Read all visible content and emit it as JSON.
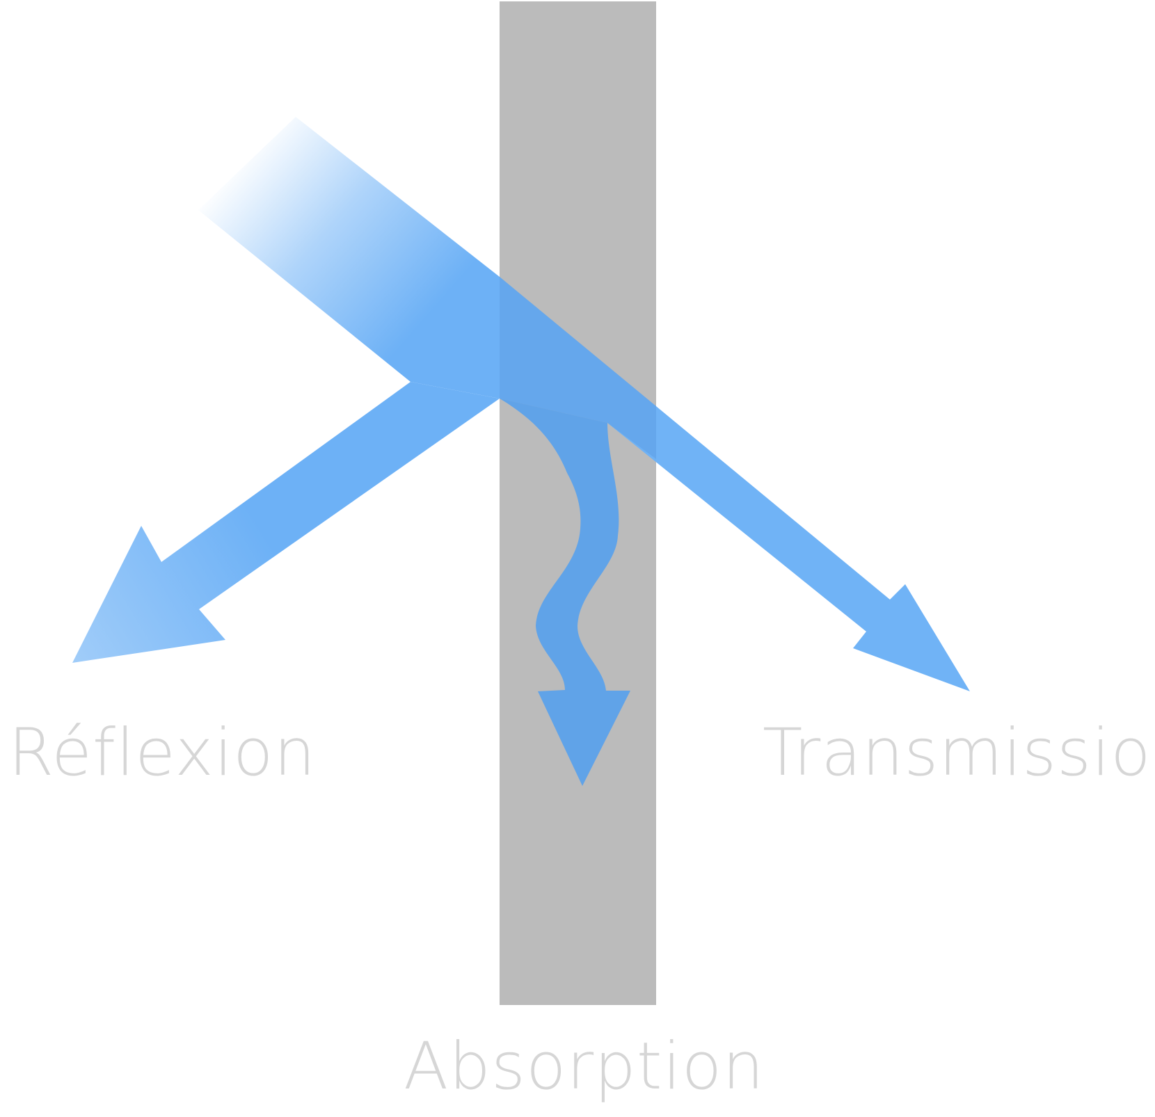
{
  "labels": {
    "reflexion": "Réflexion",
    "transmission": "Transmission",
    "absorption": "Absorption"
  },
  "colors": {
    "beam": "#6db1f6",
    "beam_overlap": "#60a3e8",
    "slab": "#bbbbbb",
    "label": "#d6d6d6",
    "background": "#ffffff"
  }
}
